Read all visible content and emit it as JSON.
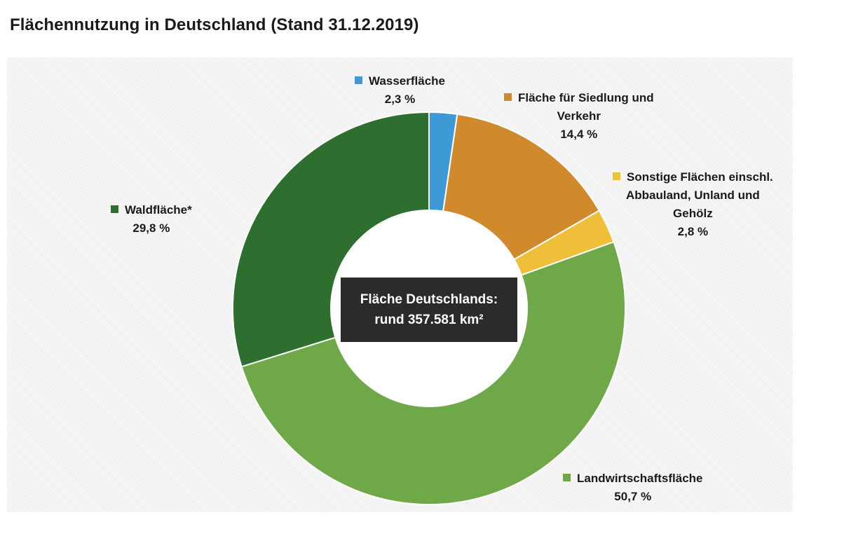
{
  "chart_data": {
    "type": "pie",
    "variant": "donut",
    "title": "Flächennutzung in Deutschland (Stand 31.12.2019)",
    "center_label": {
      "line1": "Fläche Deutschlands:",
      "line2": "rund 357.581 km²"
    },
    "slices": [
      {
        "label_lines": [
          "Wasserfläche"
        ],
        "value": 2.3,
        "value_label": "2,3 %",
        "color": "#3d9ad6"
      },
      {
        "label_lines": [
          "Fläche für Siedlung und",
          "Verkehr"
        ],
        "value": 14.4,
        "value_label": "14,4 %",
        "color": "#d08a2c"
      },
      {
        "label_lines": [
          "Sonstige Flächen einschl.",
          "Abbauland, Unland und",
          "Gehölz"
        ],
        "value": 2.8,
        "value_label": "2,8 %",
        "color": "#f0bf3a"
      },
      {
        "label_lines": [
          "Landwirtschaftsfläche"
        ],
        "value": 50.7,
        "value_label": "50,7 %",
        "color": "#6ea848"
      },
      {
        "label_lines": [
          "Waldfläche*"
        ],
        "value": 29.8,
        "value_label": "29,8 %",
        "color": "#2e6f30"
      }
    ],
    "start_angle_deg": 0,
    "direction": "clockwise",
    "legend": "labels placed next to slices with colored square markers"
  }
}
